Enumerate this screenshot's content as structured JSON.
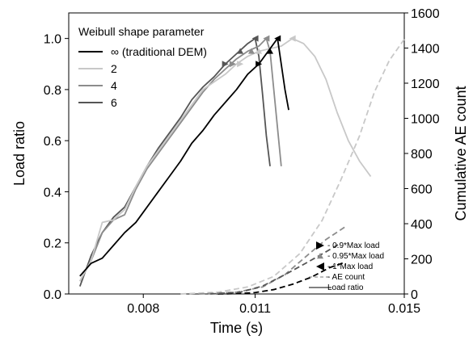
{
  "chart_data": {
    "type": "line",
    "xlabel": "Time (s)",
    "ylabel_left": "Load ratio",
    "ylabel_right": "Cumulative AE count",
    "xlim": [
      0.006,
      0.015
    ],
    "ylim_left": [
      0.0,
      1.1
    ],
    "ylim_right": [
      0,
      1600
    ],
    "x_ticks": [
      {
        "value": 0.008,
        "label": "0.008"
      },
      {
        "value": 0.011,
        "label": "0.011"
      },
      {
        "value": 0.015,
        "label": "0.015"
      }
    ],
    "y_ticks_left": [
      {
        "value": 0.0,
        "label": "0.0"
      },
      {
        "value": 0.2,
        "label": "0.2"
      },
      {
        "value": 0.4,
        "label": "0.4"
      },
      {
        "value": 0.6,
        "label": "0.6"
      },
      {
        "value": 0.8,
        "label": "0.8"
      },
      {
        "value": 1.0,
        "label": "1.0"
      }
    ],
    "y_ticks_right": [
      {
        "value": 0,
        "label": "0"
      },
      {
        "value": 200,
        "label": "200"
      },
      {
        "value": 400,
        "label": "400"
      },
      {
        "value": 600,
        "label": "600"
      },
      {
        "value": 800,
        "label": "800"
      },
      {
        "value": 1000,
        "label": "1000"
      },
      {
        "value": 1200,
        "label": "1200"
      },
      {
        "value": 1400,
        "label": "1400"
      },
      {
        "value": 1600,
        "label": "1600"
      }
    ],
    "legend_title": "Weibull shape parameter",
    "legend_placement": "top-left",
    "series": [
      {
        "name": "∞ (traditional DEM)",
        "color": "#000000",
        "load": [
          [
            0.0063,
            0.07
          ],
          [
            0.0066,
            0.12
          ],
          [
            0.0069,
            0.14
          ],
          [
            0.0072,
            0.19
          ],
          [
            0.0075,
            0.24
          ],
          [
            0.0078,
            0.28
          ],
          [
            0.0081,
            0.34
          ],
          [
            0.0084,
            0.4
          ],
          [
            0.0087,
            0.46
          ],
          [
            0.009,
            0.52
          ],
          [
            0.0093,
            0.59
          ],
          [
            0.0096,
            0.64
          ],
          [
            0.0099,
            0.7
          ],
          [
            0.0102,
            0.75
          ],
          [
            0.0105,
            0.8
          ],
          [
            0.0108,
            0.86
          ],
          [
            0.0111,
            0.9
          ],
          [
            0.0114,
            0.96
          ],
          [
            0.0116,
            1.0
          ],
          [
            0.0117,
            0.9
          ],
          [
            0.0118,
            0.8
          ],
          [
            0.0119,
            0.72
          ]
        ],
        "ae": [
          [
            0.01,
            0
          ],
          [
            0.0105,
            2
          ],
          [
            0.011,
            8
          ],
          [
            0.0115,
            25
          ],
          [
            0.012,
            55
          ],
          [
            0.0125,
            95
          ],
          [
            0.013,
            150
          ],
          [
            0.0134,
            180
          ]
        ],
        "markers": {
          "p090": [
            0.0111,
            0.9
          ],
          "p095": [
            0.0114,
            0.95
          ],
          "p100": [
            0.0116,
            1.0
          ]
        }
      },
      {
        "name": "2",
        "color": "#c8c8c8",
        "load": [
          [
            0.0063,
            0.05
          ],
          [
            0.0066,
            0.13
          ],
          [
            0.0069,
            0.28
          ],
          [
            0.0072,
            0.29
          ],
          [
            0.0075,
            0.33
          ],
          [
            0.0078,
            0.42
          ],
          [
            0.0081,
            0.5
          ],
          [
            0.0084,
            0.56
          ],
          [
            0.0087,
            0.62
          ],
          [
            0.009,
            0.68
          ],
          [
            0.0093,
            0.74
          ],
          [
            0.0096,
            0.8
          ],
          [
            0.0099,
            0.83
          ],
          [
            0.0102,
            0.86
          ],
          [
            0.0105,
            0.9
          ],
          [
            0.0108,
            0.93
          ],
          [
            0.0111,
            0.95
          ],
          [
            0.0114,
            0.96
          ],
          [
            0.0117,
            0.97
          ],
          [
            0.012,
            1.0
          ],
          [
            0.0123,
            0.98
          ],
          [
            0.0126,
            0.93
          ],
          [
            0.0129,
            0.84
          ],
          [
            0.0132,
            0.71
          ],
          [
            0.0135,
            0.6
          ],
          [
            0.0138,
            0.52
          ],
          [
            0.0141,
            0.46
          ]
        ],
        "ae": [
          [
            0.009,
            0
          ],
          [
            0.01,
            10
          ],
          [
            0.0108,
            40
          ],
          [
            0.0115,
            100
          ],
          [
            0.0122,
            230
          ],
          [
            0.0128,
            420
          ],
          [
            0.0133,
            650
          ],
          [
            0.0138,
            900
          ],
          [
            0.0142,
            1150
          ],
          [
            0.0146,
            1330
          ],
          [
            0.015,
            1450
          ]
        ],
        "markers": {
          "p090": [
            0.0106,
            0.9
          ],
          "p095": [
            0.0111,
            0.95
          ],
          "p100": [
            0.012,
            1.0
          ]
        }
      },
      {
        "name": "4",
        "color": "#8c8c8c",
        "load": [
          [
            0.0063,
            0.05
          ],
          [
            0.0066,
            0.13
          ],
          [
            0.0069,
            0.24
          ],
          [
            0.0072,
            0.29
          ],
          [
            0.0075,
            0.31
          ],
          [
            0.0078,
            0.41
          ],
          [
            0.0081,
            0.49
          ],
          [
            0.0084,
            0.55
          ],
          [
            0.0087,
            0.61
          ],
          [
            0.009,
            0.67
          ],
          [
            0.0093,
            0.73
          ],
          [
            0.0096,
            0.79
          ],
          [
            0.0099,
            0.84
          ],
          [
            0.0102,
            0.88
          ],
          [
            0.0105,
            0.92
          ],
          [
            0.0108,
            0.95
          ],
          [
            0.0111,
            0.97
          ],
          [
            0.0113,
            1.0
          ],
          [
            0.0114,
            0.95
          ],
          [
            0.0115,
            0.8
          ],
          [
            0.0116,
            0.65
          ],
          [
            0.0117,
            0.5
          ]
        ],
        "ae": [
          [
            0.0095,
            0
          ],
          [
            0.0105,
            10
          ],
          [
            0.0112,
            40
          ],
          [
            0.0118,
            110
          ],
          [
            0.0124,
            220
          ],
          [
            0.0129,
            310
          ],
          [
            0.0134,
            380
          ]
        ],
        "markers": {
          "p090": [
            0.0104,
            0.9
          ],
          "p095": [
            0.0109,
            0.95
          ],
          "p100": [
            0.0113,
            1.0
          ]
        }
      },
      {
        "name": "6",
        "color": "#555555",
        "load": [
          [
            0.0063,
            0.03
          ],
          [
            0.0066,
            0.15
          ],
          [
            0.0069,
            0.24
          ],
          [
            0.0072,
            0.3
          ],
          [
            0.0075,
            0.34
          ],
          [
            0.0078,
            0.42
          ],
          [
            0.0081,
            0.5
          ],
          [
            0.0084,
            0.57
          ],
          [
            0.0087,
            0.63
          ],
          [
            0.009,
            0.69
          ],
          [
            0.0093,
            0.76
          ],
          [
            0.0096,
            0.81
          ],
          [
            0.0099,
            0.85
          ],
          [
            0.0102,
            0.9
          ],
          [
            0.0105,
            0.94
          ],
          [
            0.0108,
            0.98
          ],
          [
            0.011,
            1.0
          ],
          [
            0.0111,
            0.93
          ],
          [
            0.0112,
            0.78
          ],
          [
            0.0113,
            0.62
          ],
          [
            0.0114,
            0.5
          ]
        ],
        "ae": [
          [
            0.0098,
            0
          ],
          [
            0.0106,
            10
          ],
          [
            0.0112,
            45
          ],
          [
            0.0118,
            110
          ],
          [
            0.0124,
            180
          ],
          [
            0.0129,
            240
          ],
          [
            0.0133,
            290
          ]
        ],
        "markers": {
          "p090": [
            0.0102,
            0.9
          ],
          "p095": [
            0.0106,
            0.95
          ],
          "p100": [
            0.011,
            1.0
          ]
        }
      }
    ],
    "marker_legend": [
      {
        "symbol": "right-triangle",
        "label": "- 0.9*Max load"
      },
      {
        "symbol": "up-triangle",
        "label": "- 0.95*Max load"
      },
      {
        "symbol": "left-triangle",
        "label": "- 1*Max load"
      },
      {
        "symbol": "dashed-line",
        "label": "- AE count"
      },
      {
        "symbol": "solid-line",
        "label": "Load ratio"
      }
    ]
  }
}
